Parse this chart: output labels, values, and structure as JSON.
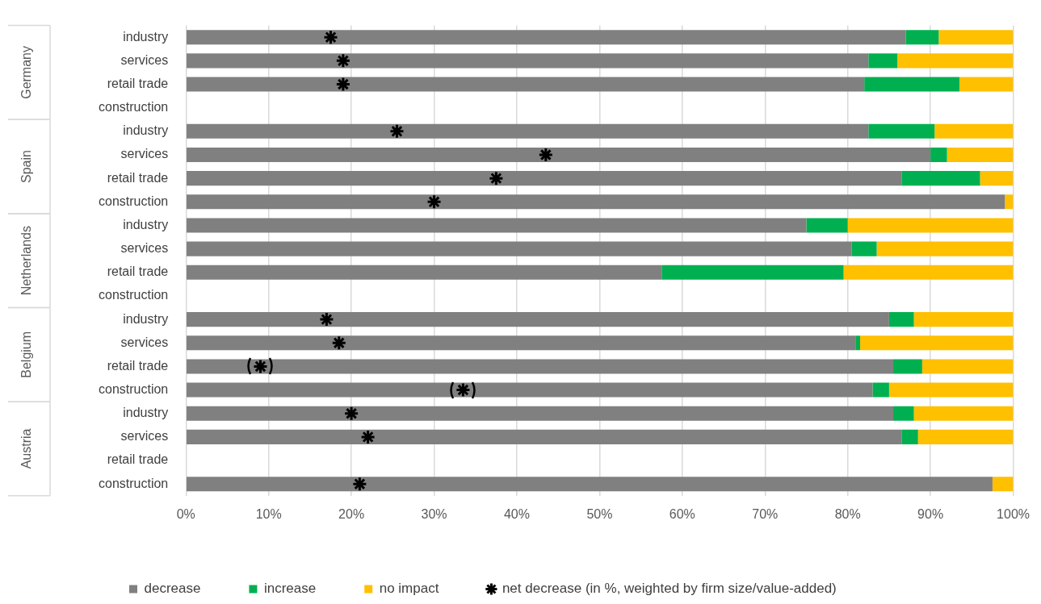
{
  "chart_data": {
    "type": "bar",
    "orientation": "horizontal",
    "stacked": true,
    "grid": "x",
    "legend": "bottom",
    "categories": [
      "industry",
      "services",
      "retail trade",
      "construction",
      "industry",
      "services",
      "retail trade",
      "construction",
      "industry",
      "services",
      "retail trade",
      "construction",
      "industry",
      "services",
      "retail trade",
      "construction",
      "industry",
      "services",
      "retail trade",
      "construction"
    ],
    "annotations": [
      "Germany",
      "Spain",
      "Netherlands",
      "Belgium",
      "Austria"
    ],
    "xlim": [
      0,
      100
    ],
    "xticks": [
      {
        "value": 0,
        "label": "0%"
      },
      {
        "value": 10,
        "label": "10%"
      },
      {
        "value": 20,
        "label": "20%"
      },
      {
        "value": 30,
        "label": "30%"
      },
      {
        "value": 40,
        "label": "40%"
      },
      {
        "value": 50,
        "label": "50%"
      },
      {
        "value": 60,
        "label": "60%"
      },
      {
        "value": 70,
        "label": "70%"
      },
      {
        "value": 80,
        "label": "80%"
      },
      {
        "value": 90,
        "label": "90%"
      },
      {
        "value": 100,
        "label": "100%"
      }
    ],
    "series": [
      {
        "name": "decrease",
        "color": "#808080",
        "values": [
          87,
          82.5,
          82,
          null,
          82.5,
          90,
          86.5,
          99,
          75,
          80.5,
          57.5,
          null,
          85,
          81,
          85.5,
          83,
          85.5,
          86.5,
          null,
          97.5
        ]
      },
      {
        "name": "increase",
        "color": "#00b050",
        "values": [
          4,
          3.5,
          11.5,
          null,
          8,
          2,
          9.5,
          0,
          5,
          3,
          22,
          null,
          3,
          0.5,
          3.5,
          2,
          2.5,
          2,
          null,
          0
        ]
      },
      {
        "name": "no impact",
        "color": "#ffc000",
        "values": [
          9,
          14,
          6.5,
          null,
          9.5,
          8,
          4,
          1,
          20,
          16.5,
          20.5,
          null,
          12,
          18.5,
          11,
          15,
          12,
          11.5,
          null,
          2.5
        ]
      },
      {
        "name": "net decrease (in %, weighted by firm size/value-added)",
        "type": "scatter",
        "marker": "cross",
        "color": "#000000",
        "values": [
          17.5,
          19,
          19,
          null,
          25.5,
          43.5,
          37.5,
          30,
          null,
          null,
          null,
          null,
          17,
          18.5,
          null,
          null,
          20,
          22,
          null,
          21
        ]
      },
      {
        "type": "scatter",
        "marker": "cross",
        "color": "#000000",
        "values": [
          null,
          null,
          null,
          null,
          null,
          null,
          null,
          null,
          null,
          null,
          null,
          null,
          null,
          null,
          9,
          33.5,
          null,
          null,
          null,
          null
        ]
      }
    ]
  }
}
